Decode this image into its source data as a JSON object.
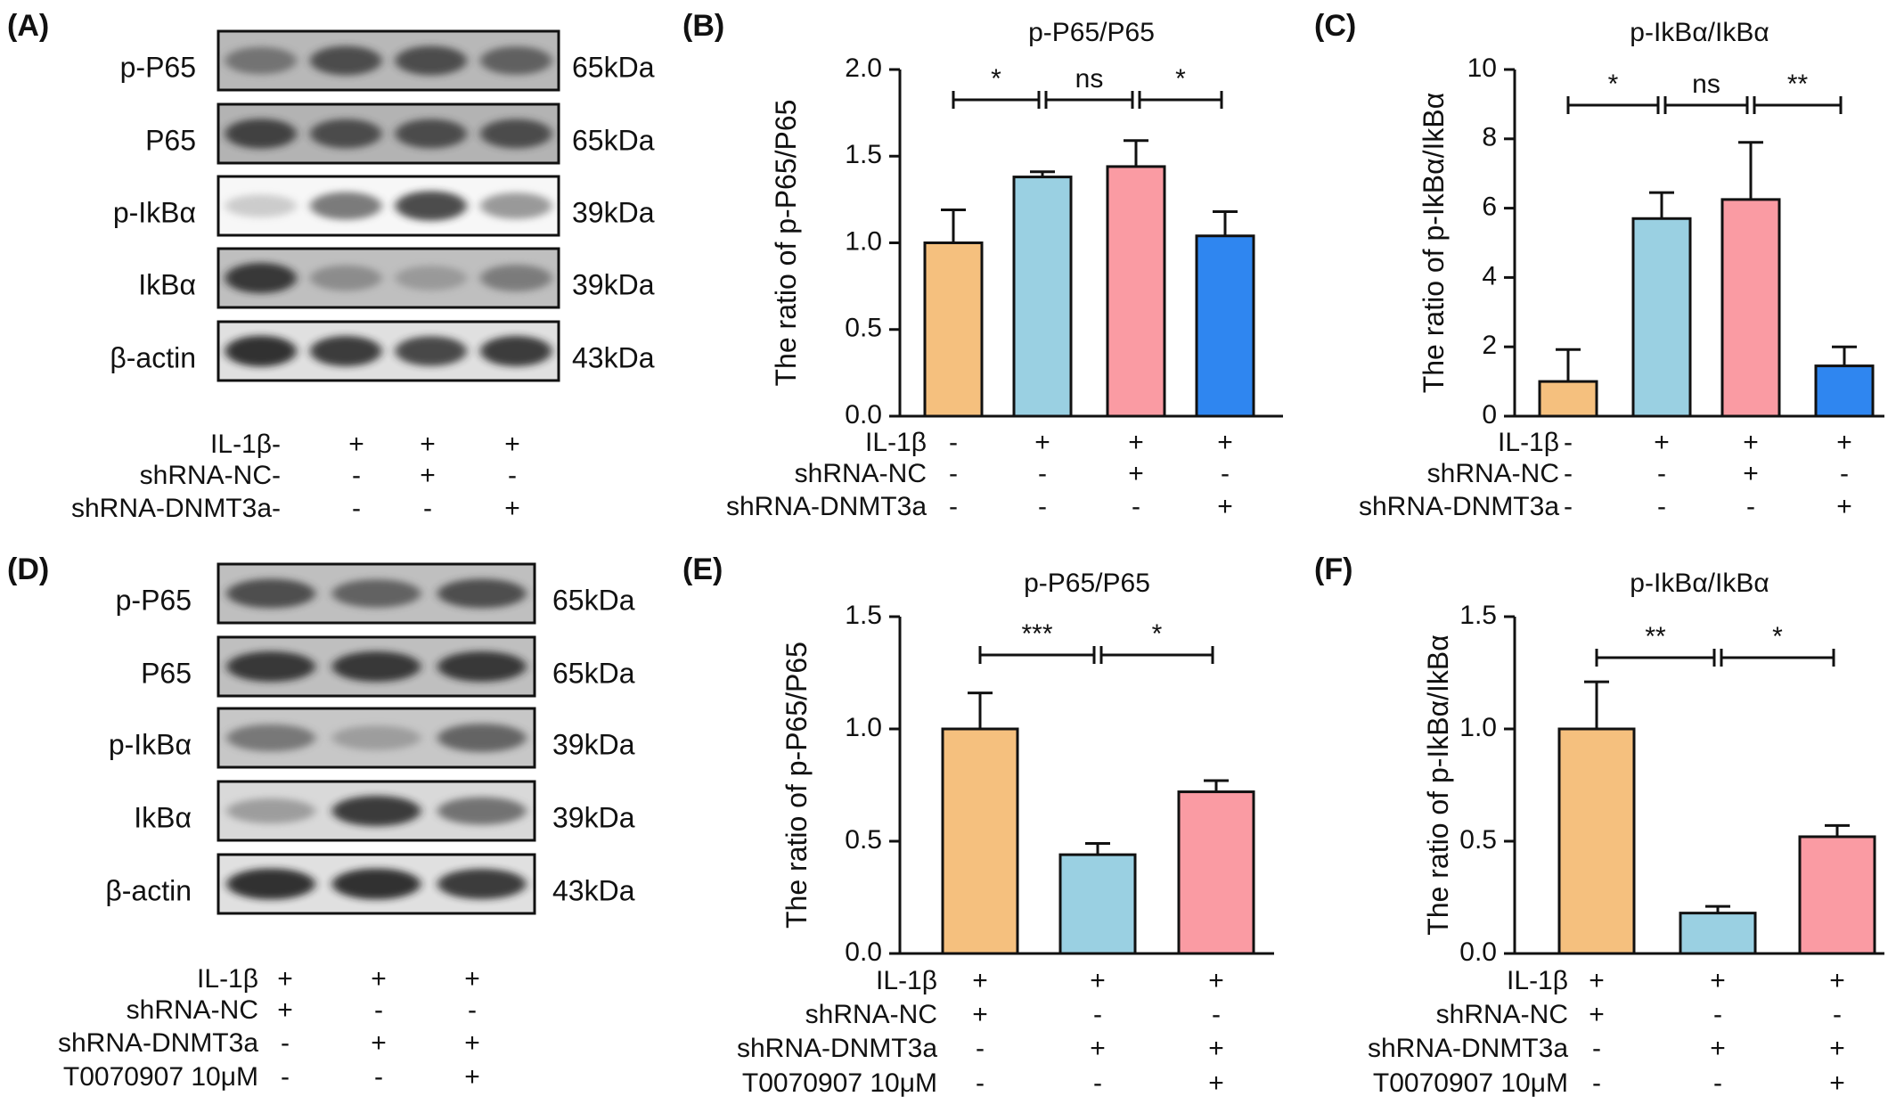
{
  "panels": {
    "A": "(A)",
    "B": "(B)",
    "C": "(C)",
    "D": "(D)",
    "E": "(E)",
    "F": "(F)"
  },
  "blots": [
    {
      "id": "A",
      "lanes": 4,
      "rows": [
        {
          "protein": "p-P65",
          "kda": "65kDa",
          "intensity": [
            0.55,
            0.75,
            0.75,
            0.65
          ],
          "bg": 0.72
        },
        {
          "protein": "P65",
          "kda": "65kDa",
          "intensity": [
            0.8,
            0.75,
            0.75,
            0.75
          ],
          "bg": 0.7
        },
        {
          "protein": "p-IkBα",
          "kda": "39kDa",
          "intensity": [
            0.12,
            0.6,
            0.8,
            0.45
          ],
          "bg": 0.97
        },
        {
          "protein": "IkBα",
          "kda": "39kDa",
          "intensity": [
            0.85,
            0.4,
            0.3,
            0.5
          ],
          "bg": 0.75
        },
        {
          "protein": "β-actin",
          "kda": "43kDa",
          "intensity": [
            0.9,
            0.85,
            0.8,
            0.85
          ],
          "bg": 0.88
        }
      ],
      "conditions": [
        {
          "name": "IL-1β",
          "marks": [
            "-",
            "+",
            "+",
            "+"
          ]
        },
        {
          "name": "shRNA-NC",
          "marks": [
            "-",
            "-",
            "+",
            "-"
          ]
        },
        {
          "name": "shRNA-DNMT3a",
          "marks": [
            "-",
            "-",
            "-",
            "+"
          ]
        }
      ]
    },
    {
      "id": "D",
      "lanes": 3,
      "rows": [
        {
          "protein": "p-P65",
          "kda": "65kDa",
          "intensity": [
            0.75,
            0.65,
            0.75
          ],
          "bg": 0.75
        },
        {
          "protein": "P65",
          "kda": "65kDa",
          "intensity": [
            0.85,
            0.85,
            0.85
          ],
          "bg": 0.75
        },
        {
          "protein": "p-IkBα",
          "kda": "39kDa",
          "intensity": [
            0.55,
            0.3,
            0.65
          ],
          "bg": 0.78
        },
        {
          "protein": "IkBα",
          "kda": "39kDa",
          "intensity": [
            0.35,
            0.85,
            0.6
          ],
          "bg": 0.85
        },
        {
          "protein": "β-actin",
          "kda": "43kDa",
          "intensity": [
            0.9,
            0.9,
            0.85
          ],
          "bg": 0.88
        }
      ],
      "conditions": [
        {
          "name": "IL-1β",
          "marks": [
            "+",
            "+",
            "+"
          ]
        },
        {
          "name": "shRNA-NC",
          "marks": [
            "+",
            "-",
            "-"
          ]
        },
        {
          "name": "shRNA-DNMT3a",
          "marks": [
            "-",
            "+",
            "+"
          ]
        },
        {
          "name": "T0070907 10μM",
          "marks": [
            "-",
            "-",
            "+"
          ]
        }
      ]
    }
  ],
  "chart_data": [
    {
      "id": "B",
      "type": "bar",
      "title": "p-P65/P65",
      "ylabel": "The ratio of  p-P65/P65",
      "ylim": [
        0,
        2.0
      ],
      "yticks": [
        "0.0",
        "0.5",
        "1.0",
        "1.5",
        "2.0"
      ],
      "values": [
        1.0,
        1.38,
        1.44,
        1.04
      ],
      "errors": [
        0.19,
        0.03,
        0.15,
        0.14
      ],
      "colors": [
        "#F5C07E",
        "#9AD0E2",
        "#FA9BA3",
        "#2F86F0"
      ],
      "conditions": [
        {
          "name": "IL-1β",
          "marks": [
            "-",
            "+",
            "+",
            "+"
          ]
        },
        {
          "name": "shRNA-NC",
          "marks": [
            "-",
            "-",
            "+",
            "-"
          ]
        },
        {
          "name": "shRNA-DNMT3a",
          "marks": [
            "-",
            "-",
            "-",
            "+"
          ]
        }
      ],
      "significance": [
        {
          "from": 0,
          "to": 1,
          "label": "*"
        },
        {
          "from": 1,
          "to": 2,
          "label": "ns"
        },
        {
          "from": 2,
          "to": 3,
          "label": "*"
        }
      ]
    },
    {
      "id": "C",
      "type": "bar",
      "title": "p-IkBα/IkBα",
      "ylabel": "The ratio of  p-IkBα/IkBα",
      "ylim": [
        0,
        10
      ],
      "yticks": [
        "0",
        "2",
        "4",
        "6",
        "8",
        "10"
      ],
      "values": [
        1.0,
        5.7,
        6.25,
        1.45
      ],
      "errors": [
        0.92,
        0.75,
        1.65,
        0.55
      ],
      "colors": [
        "#F5C07E",
        "#9AD0E2",
        "#FA9BA3",
        "#2F86F0"
      ],
      "conditions": [
        {
          "name": "IL-1β",
          "marks": [
            "-",
            "+",
            "+",
            "+"
          ]
        },
        {
          "name": "shRNA-NC",
          "marks": [
            "-",
            "-",
            "+",
            "-"
          ]
        },
        {
          "name": "shRNA-DNMT3a",
          "marks": [
            "-",
            "-",
            "-",
            "+"
          ]
        }
      ],
      "significance": [
        {
          "from": 0,
          "to": 1,
          "label": "*"
        },
        {
          "from": 1,
          "to": 2,
          "label": "ns"
        },
        {
          "from": 2,
          "to": 3,
          "label": "**"
        }
      ]
    },
    {
      "id": "E",
      "type": "bar",
      "title": "p-P65/P65",
      "ylabel": "The ratio of  p-P65/P65",
      "ylim": [
        0,
        1.5
      ],
      "yticks": [
        "0.0",
        "0.5",
        "1.0",
        "1.5"
      ],
      "values": [
        1.0,
        0.44,
        0.72
      ],
      "errors": [
        0.16,
        0.05,
        0.05
      ],
      "colors": [
        "#F5C07E",
        "#9AD0E2",
        "#FA9BA3"
      ],
      "conditions": [
        {
          "name": "IL-1β",
          "marks": [
            "+",
            "+",
            "+"
          ]
        },
        {
          "name": "shRNA-NC",
          "marks": [
            "+",
            "-",
            "-"
          ]
        },
        {
          "name": "shRNA-DNMT3a",
          "marks": [
            "-",
            "+",
            "+"
          ]
        },
        {
          "name": "T0070907 10μM",
          "marks": [
            "-",
            "-",
            "+"
          ]
        }
      ],
      "significance": [
        {
          "from": 0,
          "to": 1,
          "label": "***"
        },
        {
          "from": 1,
          "to": 2,
          "label": "*"
        }
      ]
    },
    {
      "id": "F",
      "type": "bar",
      "title": "p-IkBα/IkBα",
      "ylabel": "The ratio of  p-IkBα/IkBα",
      "ylim": [
        0,
        1.5
      ],
      "yticks": [
        "0.0",
        "0.5",
        "1.0",
        "1.5"
      ],
      "values": [
        1.0,
        0.18,
        0.52
      ],
      "errors": [
        0.21,
        0.03,
        0.05
      ],
      "colors": [
        "#F5C07E",
        "#9AD0E2",
        "#FA9BA3"
      ],
      "conditions": [
        {
          "name": "IL-1β",
          "marks": [
            "+",
            "+",
            "+"
          ]
        },
        {
          "name": "shRNA-NC",
          "marks": [
            "+",
            "-",
            "-"
          ]
        },
        {
          "name": "shRNA-DNMT3a",
          "marks": [
            "-",
            "+",
            "+"
          ]
        },
        {
          "name": "T0070907 10μM",
          "marks": [
            "-",
            "-",
            "+"
          ]
        }
      ],
      "significance": [
        {
          "from": 0,
          "to": 1,
          "label": "**"
        },
        {
          "from": 1,
          "to": 2,
          "label": "*"
        }
      ]
    }
  ]
}
